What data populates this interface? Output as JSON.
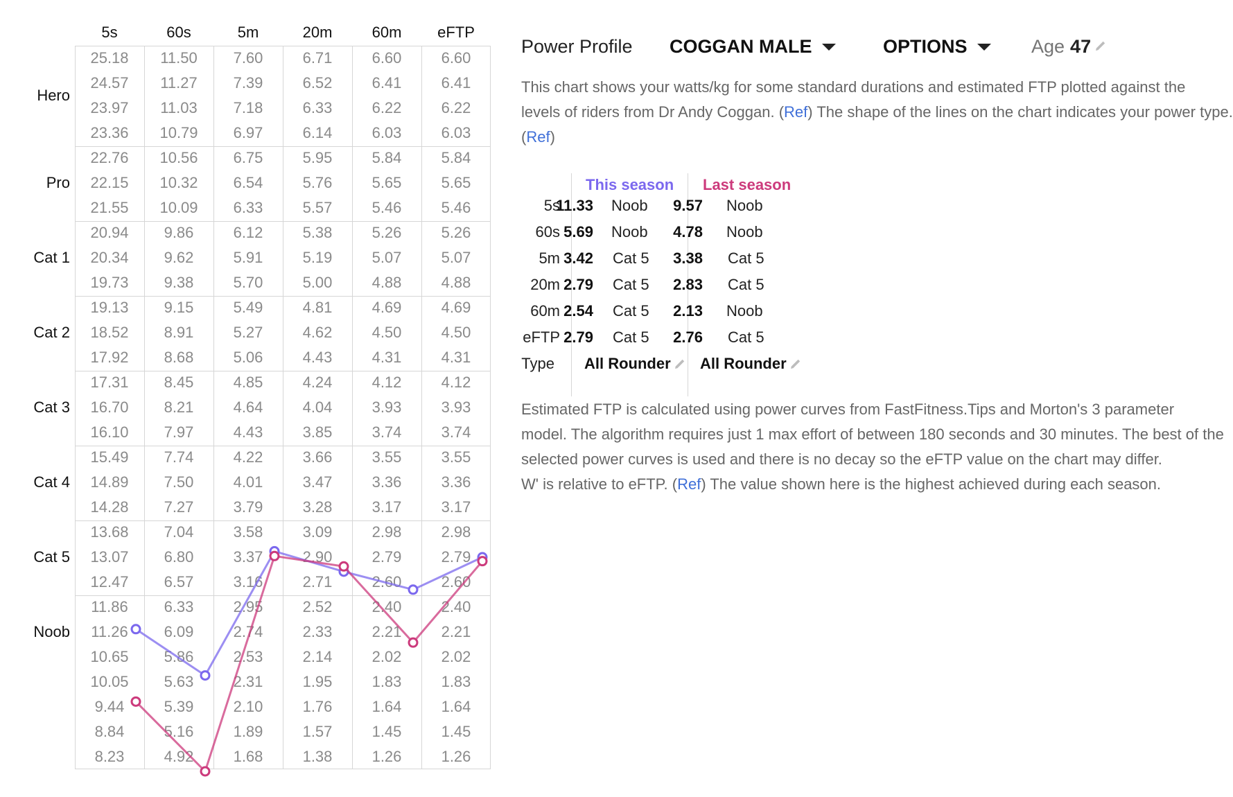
{
  "grid": {
    "durations": [
      "5s",
      "60s",
      "5m",
      "20m",
      "60m",
      "eFTP"
    ],
    "levels": [
      "Hero",
      "Pro",
      "Cat 1",
      "Cat 2",
      "Cat 3",
      "Cat 4",
      "Cat 5",
      "Noob"
    ],
    "rows": [
      [
        "25.18",
        "11.50",
        "7.60",
        "6.71",
        "6.60",
        "6.60"
      ],
      [
        "24.57",
        "11.27",
        "7.39",
        "6.52",
        "6.41",
        "6.41"
      ],
      [
        "23.97",
        "11.03",
        "7.18",
        "6.33",
        "6.22",
        "6.22"
      ],
      [
        "23.36",
        "10.79",
        "6.97",
        "6.14",
        "6.03",
        "6.03"
      ],
      [
        "22.76",
        "10.56",
        "6.75",
        "5.95",
        "5.84",
        "5.84"
      ],
      [
        "22.15",
        "10.32",
        "6.54",
        "5.76",
        "5.65",
        "5.65"
      ],
      [
        "21.55",
        "10.09",
        "6.33",
        "5.57",
        "5.46",
        "5.46"
      ],
      [
        "20.94",
        "9.86",
        "6.12",
        "5.38",
        "5.26",
        "5.26"
      ],
      [
        "20.34",
        "9.62",
        "5.91",
        "5.19",
        "5.07",
        "5.07"
      ],
      [
        "19.73",
        "9.38",
        "5.70",
        "5.00",
        "4.88",
        "4.88"
      ],
      [
        "19.13",
        "9.15",
        "5.49",
        "4.81",
        "4.69",
        "4.69"
      ],
      [
        "18.52",
        "8.91",
        "5.27",
        "4.62",
        "4.50",
        "4.50"
      ],
      [
        "17.92",
        "8.68",
        "5.06",
        "4.43",
        "4.31",
        "4.31"
      ],
      [
        "17.31",
        "8.45",
        "4.85",
        "4.24",
        "4.12",
        "4.12"
      ],
      [
        "16.70",
        "8.21",
        "4.64",
        "4.04",
        "3.93",
        "3.93"
      ],
      [
        "16.10",
        "7.97",
        "4.43",
        "3.85",
        "3.74",
        "3.74"
      ],
      [
        "15.49",
        "7.74",
        "4.22",
        "3.66",
        "3.55",
        "3.55"
      ],
      [
        "14.89",
        "7.50",
        "4.01",
        "3.47",
        "3.36",
        "3.36"
      ],
      [
        "14.28",
        "7.27",
        "3.79",
        "3.28",
        "3.17",
        "3.17"
      ],
      [
        "13.68",
        "7.04",
        "3.58",
        "3.09",
        "2.98",
        "2.98"
      ],
      [
        "13.07",
        "6.80",
        "3.37",
        "2.90",
        "2.79",
        "2.79"
      ],
      [
        "12.47",
        "6.57",
        "3.16",
        "2.71",
        "2.60",
        "2.60"
      ],
      [
        "11.86",
        "6.33",
        "2.95",
        "2.52",
        "2.40",
        "2.40"
      ],
      [
        "11.26",
        "6.09",
        "2.74",
        "2.33",
        "2.21",
        "2.21"
      ],
      [
        "10.65",
        "5.86",
        "2.53",
        "2.14",
        "2.02",
        "2.02"
      ],
      [
        "10.05",
        "5.63",
        "2.31",
        "1.95",
        "1.83",
        "1.83"
      ],
      [
        "9.44",
        "5.39",
        "2.10",
        "1.76",
        "1.64",
        "1.64"
      ],
      [
        "8.84",
        "5.16",
        "1.89",
        "1.57",
        "1.45",
        "1.45"
      ],
      [
        "8.23",
        "4.92",
        "1.68",
        "1.38",
        "1.26",
        "1.26"
      ]
    ]
  },
  "chart_data": {
    "type": "line",
    "categories": [
      "5s",
      "60s",
      "5m",
      "20m",
      "60m",
      "eFTP"
    ],
    "series": [
      {
        "name": "This season",
        "color": "#7b68ee",
        "values": [
          11.33,
          5.69,
          3.42,
          2.79,
          2.54,
          2.79
        ]
      },
      {
        "name": "Last season",
        "color": "#cc3a7c",
        "values": [
          9.57,
          4.78,
          3.38,
          2.83,
          2.13,
          2.76
        ]
      }
    ]
  },
  "header": {
    "title": "Power Profile",
    "gender_label": "COGGAN MALE",
    "options_label": "OPTIONS",
    "age_label": "Age",
    "age_value": "47"
  },
  "intro": {
    "line1": "This chart shows your watts/kg for some standard durations and estimated FTP plotted against the",
    "line2a": "levels of riders from Dr Andy Coggan. (",
    "ref1": "Ref",
    "line2b": ") The shape of the lines on the chart indicates your power type.",
    "line3a": "(",
    "ref2": "Ref",
    "line3b": ")"
  },
  "summary": {
    "this_header": "This season",
    "last_header": "Last season",
    "this_color": "#7b68ee",
    "last_color": "#cc3a7c",
    "rows": [
      {
        "label": "5s",
        "this_val": "11.33",
        "this_cat": "Noob",
        "last_val": "9.57",
        "last_cat": "Noob"
      },
      {
        "label": "60s",
        "this_val": "5.69",
        "this_cat": "Noob",
        "last_val": "4.78",
        "last_cat": "Noob"
      },
      {
        "label": "5m",
        "this_val": "3.42",
        "this_cat": "Cat 5",
        "last_val": "3.38",
        "last_cat": "Cat 5"
      },
      {
        "label": "20m",
        "this_val": "2.79",
        "this_cat": "Cat 5",
        "last_val": "2.83",
        "last_cat": "Cat 5"
      },
      {
        "label": "60m",
        "this_val": "2.54",
        "this_cat": "Cat 5",
        "last_val": "2.13",
        "last_cat": "Noob"
      },
      {
        "label": "eFTP",
        "this_val": "2.79",
        "this_cat": "Cat 5",
        "last_val": "2.76",
        "last_cat": "Cat 5"
      }
    ],
    "type_label": "Type",
    "this_type": "All Rounder",
    "last_type": "All Rounder"
  },
  "note": {
    "line1": "Estimated FTP is calculated using power curves from FastFitness.Tips and Morton's 3 parameter",
    "line2": "model. The algorithm requires just 1 max effort of between 180 seconds and 30 minutes. The best of the",
    "line3": "selected power curves is used and there is no decay so the eFTP value on the chart may differ.",
    "line4a": "W' is relative to eFTP. (",
    "ref": "Ref",
    "line4b": ") The value shown here is the highest achieved during each season."
  },
  "icons": {
    "caret": "caret-down-icon",
    "pencil": "pencil-icon"
  }
}
